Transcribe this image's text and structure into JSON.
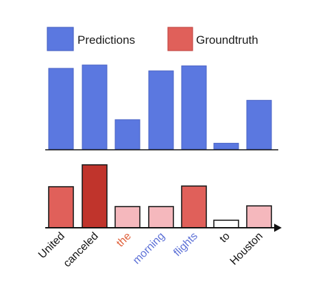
{
  "chart_data": {
    "type": "bar",
    "categories": [
      "United",
      "canceled",
      "the",
      "morning",
      "flights",
      "to",
      "Houston"
    ],
    "category_colors": [
      "#111111",
      "#111111",
      "#e0603a",
      "#5b6fd6",
      "#5b6fd6",
      "#111111",
      "#111111"
    ],
    "series": [
      {
        "name": "Predictions",
        "color": "#5b78e0",
        "values": [
          0.96,
          1.0,
          0.35,
          0.93,
          0.99,
          0.07,
          0.58
        ]
      },
      {
        "name": "Groundtruth",
        "values": [
          0.6,
          0.92,
          0.31,
          0.31,
          0.61,
          0.11,
          0.32
        ],
        "bar_colors": [
          "#e0605a",
          "#c0342c",
          "#f5b8bd",
          "#f5b8bd",
          "#e0605a",
          "#ffffff",
          "#f5b8bd"
        ]
      }
    ],
    "ylim": [
      0,
      1
    ]
  },
  "colors": {
    "prediction_fill": "#5b78e0",
    "prediction_stroke": "#4a63c4",
    "groundtruth_legend": "#e0605a",
    "bar_outline": "#1a1a1a",
    "axis": "#111111"
  }
}
